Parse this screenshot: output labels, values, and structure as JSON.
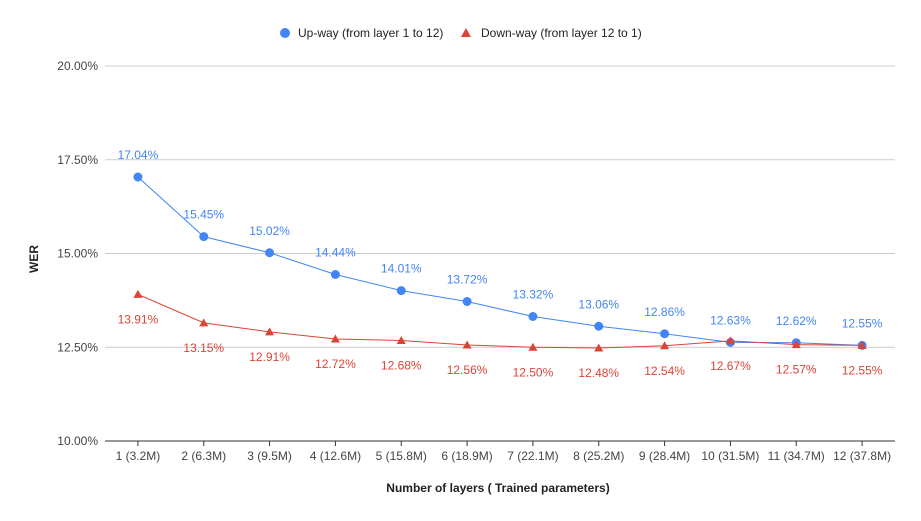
{
  "chart_data": {
    "type": "line",
    "xlabel": "Number of layers ( Trained parameters)",
    "ylabel": "WER",
    "categories": [
      "1 (3.2M)",
      "2 (6.3M)",
      "3 (9.5M)",
      "4 (12.6M)",
      "5 (15.8M)",
      "6 (18.9M)",
      "7 (22.1M)",
      "8 (25.2M)",
      "9 (28.4M)",
      "10 (31.5M)",
      "11 (34.7M)",
      "12 (37.8M)"
    ],
    "ylim": [
      0.1,
      0.2
    ],
    "yticks": [
      "10.00%",
      "12.50%",
      "15.00%",
      "17.50%",
      "20.00%"
    ],
    "grid": true,
    "legend_position": "top",
    "series": [
      {
        "name": "Up-way (from layer 1 to 12)",
        "color": "#4285f4",
        "marker": "circle",
        "values": [
          0.1704,
          0.1545,
          0.1502,
          0.1444,
          0.1401,
          0.1372,
          0.1332,
          0.1306,
          0.1286,
          0.1263,
          0.1262,
          0.1255
        ],
        "labels": [
          "17.04%",
          "15.45%",
          "15.02%",
          "14.44%",
          "14.01%",
          "13.72%",
          "13.32%",
          "13.06%",
          "12.86%",
          "12.63%",
          "12.62%",
          "12.55%"
        ]
      },
      {
        "name": "Down-way (from layer 12 to 1)",
        "color": "#db4437",
        "marker": "triangle",
        "values": [
          0.1391,
          0.1315,
          0.1291,
          0.1272,
          0.1268,
          0.1256,
          0.125,
          0.1248,
          0.1254,
          0.1267,
          0.1257,
          0.1255
        ],
        "labels": [
          "13.91%",
          "13.15%",
          "12.91%",
          "12.72%",
          "12.68%",
          "12.56%",
          "12.50%",
          "12.48%",
          "12.54%",
          "12.67%",
          "12.57%",
          "12.55%"
        ]
      }
    ]
  }
}
